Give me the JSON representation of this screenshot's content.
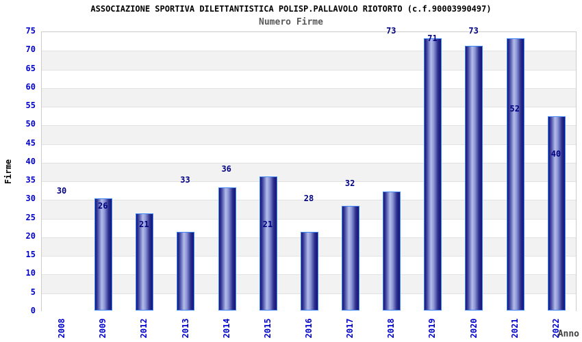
{
  "header": {
    "title": "ASSOCIAZIONE SPORTIVA DILETTANTISTICA POLISP.PALLAVOLO RIOTORTO (c.f.90003990497)",
    "subtitle": "Numero Firme"
  },
  "chart_data": {
    "type": "bar",
    "title": "Numero Firme",
    "categories": [
      "2008",
      "2009",
      "2012",
      "2013",
      "2014",
      "2015",
      "2016",
      "2017",
      "2018",
      "2019",
      "2020",
      "2021",
      "2022"
    ],
    "values": [
      30,
      26,
      21,
      33,
      36,
      21,
      28,
      32,
      73,
      71,
      73,
      52,
      40
    ],
    "xlabel": "Anno",
    "ylabel": "Firme",
    "ylim": [
      0,
      75
    ],
    "ytick_step": 5,
    "yticks": [
      0,
      5,
      10,
      15,
      20,
      25,
      30,
      35,
      40,
      45,
      50,
      55,
      60,
      65,
      70,
      75
    ],
    "grid": "horizontal-gridlines-with-alternating-bands",
    "legend": "none",
    "bar_value_labels_shown": true
  },
  "colors": {
    "title": "#000000",
    "subtitle": "#595959",
    "tick_labels": "#0000cc",
    "value_labels": "#000080",
    "band_fill": "#f2f2f2",
    "gridline": "#e2e2e2",
    "plot_border": "#cccccc",
    "bar_dark": "#14147a",
    "bar_light": "#b4bce9",
    "bar_border": "#3f87f5",
    "xlabel_color": "#404040"
  }
}
